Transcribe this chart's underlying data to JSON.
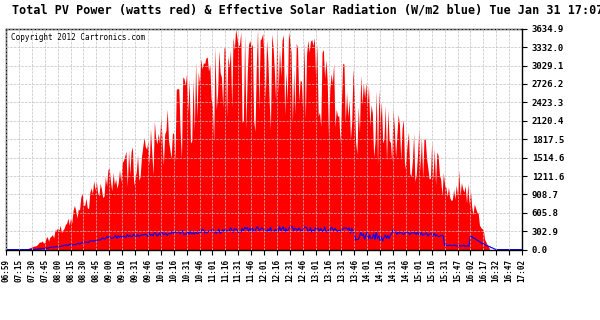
{
  "title": "Total PV Power (watts red) & Effective Solar Radiation (W/m2 blue) Tue Jan 31 17:07",
  "copyright": "Copyright 2012 Cartronics.com",
  "background_color": "#ffffff",
  "plot_bg_color": "#ffffff",
  "bar_color": "#ff0000",
  "line_color": "#0000ff",
  "grid_color": "#c0c0c0",
  "ymax": 3634.9,
  "ymin": 0.0,
  "yticks": [
    0.0,
    302.9,
    605.8,
    908.7,
    1211.6,
    1514.6,
    1817.5,
    2120.4,
    2423.3,
    2726.2,
    3029.1,
    3332.0,
    3634.9
  ],
  "xtick_labels": [
    "06:59",
    "07:15",
    "07:30",
    "07:45",
    "08:00",
    "08:15",
    "08:30",
    "08:45",
    "09:00",
    "09:16",
    "09:31",
    "09:46",
    "10:01",
    "10:16",
    "10:31",
    "10:46",
    "11:01",
    "11:16",
    "11:31",
    "11:46",
    "12:01",
    "12:16",
    "12:31",
    "12:46",
    "13:01",
    "13:16",
    "13:31",
    "13:46",
    "14:01",
    "14:16",
    "14:31",
    "14:46",
    "15:01",
    "15:16",
    "15:31",
    "15:47",
    "16:02",
    "16:17",
    "16:32",
    "16:47",
    "17:02"
  ]
}
